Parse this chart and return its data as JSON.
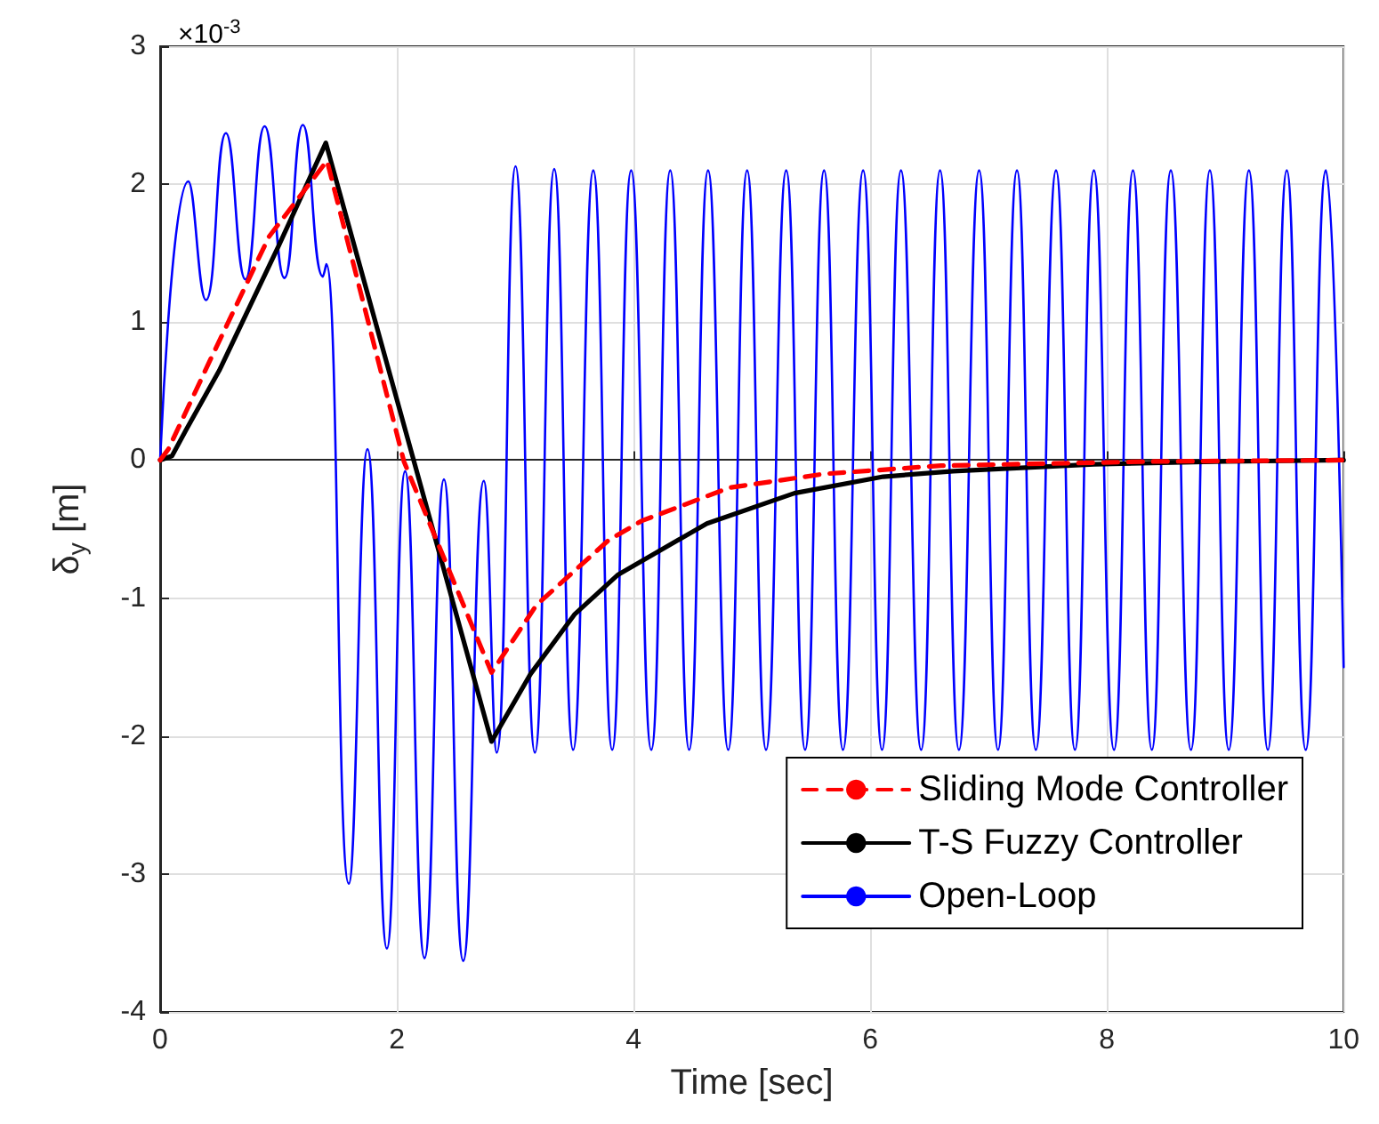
{
  "chart_data": {
    "type": "line",
    "xlabel": "Time [sec]",
    "ylabel": "δ$_{y}$ [m]",
    "annotations": [
      "×10$^{-3}$"
    ],
    "xlim": [
      0,
      10
    ],
    "xticks": [
      0,
      2,
      4,
      6,
      8,
      10
    ],
    "ylim": [
      -4,
      3
    ],
    "yticks": [
      -4,
      -3,
      -2,
      -1,
      0,
      1,
      2,
      3
    ],
    "grid": true,
    "legend": "bottom right",
    "marker": "none",
    "series": [
      {
        "name": "Sliding Mode Controller",
        "color": "#ff0000",
        "line_style": "dashed",
        "x": [
          0,
          0.07,
          0.42,
          0.92,
          1.41,
          2.06,
          2.8,
          3.18,
          3.79,
          4.07,
          4.81,
          5.61,
          6.6,
          8.38,
          10
        ],
        "values": [
          0,
          0.08,
          0.72,
          1.62,
          2.17,
          -0.01,
          -1.54,
          -1.05,
          -0.58,
          -0.44,
          -0.2,
          -0.1,
          -0.04,
          -0.01,
          0
        ]
      },
      {
        "name": "T-S Fuzzy Controller",
        "color": "#000000",
        "line_style": "solid",
        "x": [
          0,
          0.1,
          0.22,
          0.5,
          1.0,
          1.4,
          2.8,
          3.13,
          3.5,
          3.87,
          4.62,
          5.36,
          6.11,
          6.7,
          7.89,
          9,
          10
        ],
        "values": [
          0,
          0.03,
          0.22,
          0.65,
          1.55,
          2.3,
          -2.04,
          -1.55,
          -1.12,
          -0.83,
          -0.46,
          -0.24,
          -0.12,
          -0.08,
          -0.03,
          -0.01,
          0
        ]
      },
      {
        "name": "Open-Loop",
        "color": "#0000ff",
        "line_style": "solid",
        "x": [
          0,
          0.238,
          0.387,
          0.556,
          0.72,
          0.883,
          1.05,
          1.206,
          1.375,
          1.404,
          1.594,
          1.752,
          1.916,
          2.07,
          2.234,
          2.398,
          2.561,
          2.735,
          2.844,
          3.003,
          3.167,
          3.33,
          3.49,
          3.66,
          3.82,
          3.98,
          4.15,
          4.31,
          4.47,
          4.63,
          4.8,
          4.96,
          5.12,
          5.29,
          5.45,
          5.61,
          5.77,
          5.94,
          6.1,
          6.26,
          6.43,
          6.59,
          6.75,
          6.92,
          7.08,
          7.24,
          7.4,
          7.57,
          7.73,
          7.89,
          8.06,
          8.22,
          8.38,
          8.54,
          8.71,
          8.87,
          9.03,
          9.2,
          9.36,
          9.52,
          9.68,
          9.85,
          10
        ],
        "values": [
          0,
          2.02,
          1.16,
          2.37,
          1.31,
          2.42,
          1.32,
          2.43,
          1.33,
          1.42,
          -3.07,
          0.08,
          -3.54,
          -0.08,
          -3.61,
          -0.14,
          -3.63,
          -0.15,
          -2.12,
          2.13,
          -2.12,
          2.11,
          -2.1,
          2.1,
          -2.1,
          2.1,
          -2.1,
          2.1,
          -2.1,
          2.1,
          -2.1,
          2.1,
          -2.1,
          2.1,
          -2.1,
          2.1,
          -2.1,
          2.1,
          -2.1,
          2.1,
          -2.1,
          2.1,
          -2.1,
          2.1,
          -2.1,
          2.1,
          -2.1,
          2.1,
          -2.1,
          2.1,
          -2.1,
          2.1,
          -2.1,
          2.1,
          -2.1,
          2.1,
          -2.1,
          2.1,
          -2.1,
          2.1,
          -2.1,
          2.1,
          -1.5
        ]
      }
    ]
  }
}
